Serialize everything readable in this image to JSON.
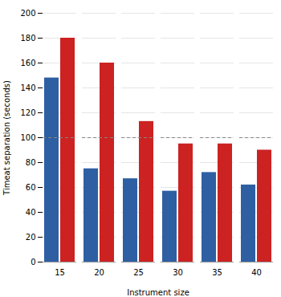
{
  "chart_data": {
    "type": "bar",
    "categories": [
      "15",
      "20",
      "25",
      "30",
      "35",
      "40"
    ],
    "series": [
      {
        "color": "#2E5FA3",
        "values": [
          148,
          75,
          67,
          57,
          72,
          62
        ]
      },
      {
        "color": "#CC2222",
        "values": [
          180,
          160,
          113,
          95,
          95,
          90
        ]
      }
    ],
    "xlabel": "Instrument size",
    "ylabel": "Timeat separation (seconds)",
    "ylim": [
      0,
      200
    ],
    "yticks": [
      0,
      20,
      40,
      60,
      80,
      100,
      120,
      140,
      160,
      180,
      200
    ],
    "grid": true,
    "reference_lines": [
      {
        "y": 100,
        "line_style": "dashed"
      }
    ]
  }
}
